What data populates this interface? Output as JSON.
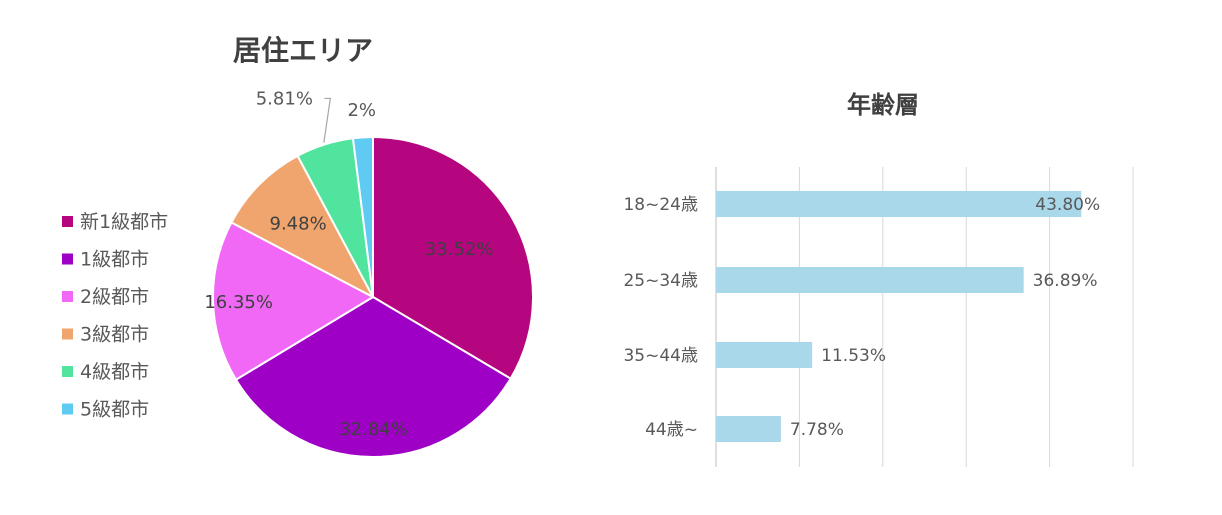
{
  "chart_data": [
    {
      "type": "pie",
      "title": "居住エリア",
      "legend_position": "left",
      "slices": [
        {
          "label": "新1級都市",
          "value": 33.52,
          "display": "33.52%",
          "color": "#B5057F"
        },
        {
          "label": "1級都市",
          "value": 32.84,
          "display": "32.84%",
          "color": "#9E00C6"
        },
        {
          "label": "2級都市",
          "value": 16.35,
          "display": "16.35%",
          "color": "#F068F5"
        },
        {
          "label": "3級都市",
          "value": 9.48,
          "display": "9.48%",
          "color": "#F0A56E"
        },
        {
          "label": "4級都市",
          "value": 5.81,
          "display": "5.81%",
          "color": "#50E49E"
        },
        {
          "label": "5級都市",
          "value": 2,
          "display": "2%",
          "color": "#5FCBF3"
        }
      ]
    },
    {
      "type": "bar",
      "orientation": "horizontal",
      "title": "年齢層",
      "categories": [
        "18~24歳",
        "25~34歳",
        "35~44歳",
        "44歳~"
      ],
      "values": [
        43.8,
        36.89,
        11.53,
        7.78
      ],
      "data_labels": [
        "43.80%",
        "36.89%",
        "11.53%",
        "7.78%"
      ],
      "xlim": [
        0,
        50
      ],
      "grid": true,
      "bar_color": "#A8D8EA",
      "grid_color": "#D9D9D9"
    }
  ]
}
